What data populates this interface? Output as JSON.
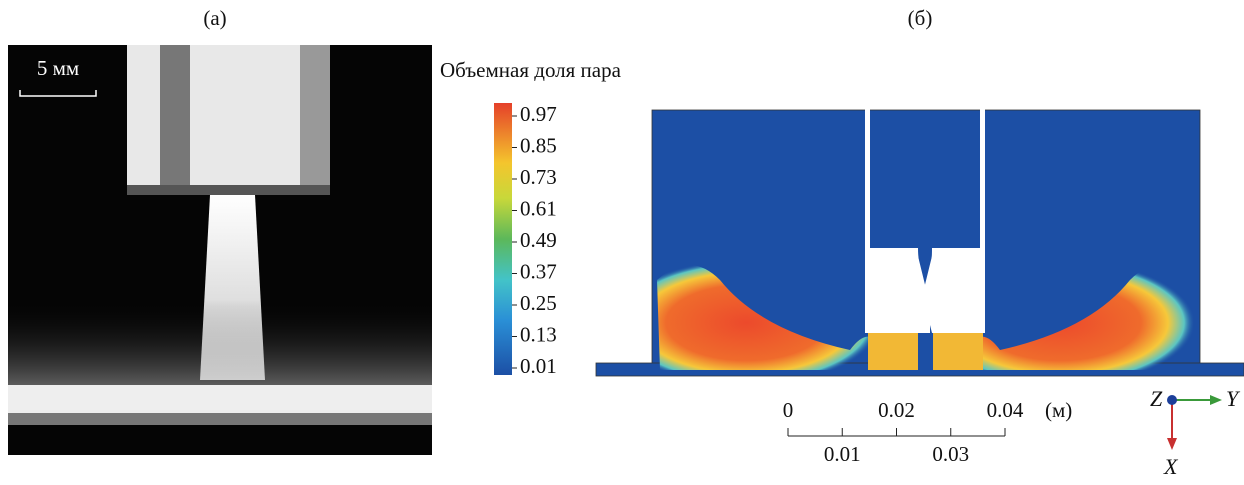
{
  "panel_a": {
    "label": "(а)",
    "scale_bar": "5 мм"
  },
  "panel_b": {
    "label": "(б)",
    "colorbar": {
      "title": "Объемная доля пара",
      "ticks": [
        "0.97",
        "0.85",
        "0.73",
        "0.61",
        "0.49",
        "0.37",
        "0.25",
        "0.13",
        "0.01"
      ]
    },
    "scale": {
      "top_ticks": [
        "0",
        "0.02",
        "0.04"
      ],
      "unit": "(м)",
      "bottom_ticks": [
        "0.01",
        "0.03"
      ]
    },
    "axes": {
      "z": "Z",
      "y": "Y",
      "x": "X"
    }
  }
}
